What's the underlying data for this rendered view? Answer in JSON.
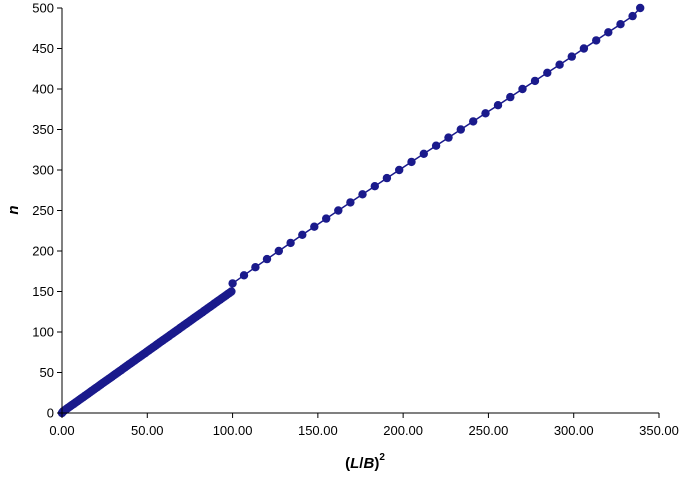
{
  "chart_data": {
    "type": "scatter",
    "xlabel": {
      "open": "(",
      "var1": "L",
      "slash": "/",
      "var2": "B",
      "close": ")",
      "exponent": "2"
    },
    "ylabel": "n",
    "xlim": [
      0,
      350
    ],
    "ylim": [
      0,
      500
    ],
    "x_ticks": [
      "0.00",
      "50.00",
      "100.00",
      "150.00",
      "200.00",
      "250.00",
      "300.00",
      "350.00"
    ],
    "y_ticks": [
      "0",
      "50",
      "100",
      "150",
      "200",
      "250",
      "300",
      "350",
      "400",
      "450",
      "500"
    ],
    "grid": false,
    "legend": "none",
    "marker_color": "#1a1a8c",
    "line_color": "#1a1a8c",
    "series": [
      {
        "x": [
          0.0,
          0.3,
          0.7,
          1.3,
          2.0,
          2.7,
          3.3,
          4.0,
          4.7,
          5.3,
          6.0,
          6.7,
          7.3,
          8.0,
          8.7,
          9.3,
          10.0,
          10.7,
          11.3,
          12.0,
          12.7,
          13.3,
          14.0,
          14.7,
          15.3,
          16.0,
          16.7,
          17.3,
          18.0,
          18.7,
          19.3,
          20.0,
          20.7,
          21.3,
          22.0,
          22.7,
          23.3,
          24.0,
          24.7,
          25.3,
          26.0,
          26.7,
          27.3,
          28.0,
          28.7,
          29.3,
          30.0,
          30.7,
          31.3,
          32.0,
          32.7,
          33.3,
          34.0,
          34.7,
          35.3,
          36.0,
          36.7,
          37.3,
          38.0,
          38.7,
          39.3,
          40.0,
          40.7,
          41.3,
          42.0,
          42.7,
          43.3,
          44.0,
          44.7,
          45.3,
          46.0,
          46.7,
          47.3,
          48.0,
          48.7,
          49.3,
          50.0,
          50.7,
          51.3,
          52.0,
          52.7,
          53.3,
          54.0,
          54.7,
          55.3,
          56.0,
          56.7,
          57.3,
          58.0,
          58.7,
          59.3,
          60.0,
          60.7,
          61.3,
          62.0,
          62.7,
          63.3,
          64.0,
          64.7,
          65.3,
          66.0,
          66.7,
          67.3,
          68.0,
          68.7,
          69.3,
          70.0,
          70.7,
          71.3,
          72.0,
          72.7,
          73.3,
          74.0,
          74.7,
          75.3,
          76.0,
          76.7,
          77.3,
          78.0,
          78.7,
          79.3,
          80.0,
          80.7,
          81.3,
          82.0,
          82.7,
          83.3,
          84.0,
          84.7,
          85.3,
          86.0,
          86.7,
          87.3,
          88.0,
          88.7,
          89.3,
          90.0,
          90.7,
          91.3,
          92.0,
          92.7,
          93.3,
          94.0,
          94.7,
          95.3,
          96.0,
          96.7,
          97.3,
          98.0,
          98.7,
          99.3,
          100.0,
          106.7,
          113.4,
          120.2,
          127.1,
          134.0,
          140.9,
          147.9,
          154.9,
          162.0,
          169.1,
          176.2,
          183.4,
          190.5,
          197.7,
          204.9,
          212.1,
          219.3,
          226.6,
          233.8,
          241.1,
          248.3,
          255.6,
          262.8,
          270.0,
          277.3,
          284.5,
          291.7,
          298.9,
          306.0,
          313.2,
          320.3,
          327.4,
          334.5,
          339.0
        ],
        "y": [
          0,
          1,
          2,
          3,
          4,
          5,
          6,
          7,
          8,
          9,
          10,
          11,
          12,
          13,
          14,
          15,
          16,
          17,
          18,
          19,
          20,
          21,
          22,
          23,
          24,
          25,
          26,
          27,
          28,
          29,
          30,
          31,
          32,
          33,
          34,
          35,
          36,
          37,
          38,
          39,
          40,
          41,
          42,
          43,
          44,
          45,
          46,
          47,
          48,
          49,
          50,
          51,
          52,
          53,
          54,
          55,
          56,
          57,
          58,
          59,
          60,
          61,
          62,
          63,
          64,
          65,
          66,
          67,
          68,
          69,
          70,
          71,
          72,
          73,
          74,
          75,
          76,
          77,
          78,
          79,
          80,
          81,
          82,
          83,
          84,
          85,
          86,
          87,
          88,
          89,
          90,
          91,
          92,
          93,
          94,
          95,
          96,
          97,
          98,
          99,
          100,
          101,
          102,
          103,
          104,
          105,
          106,
          107,
          108,
          109,
          110,
          111,
          112,
          113,
          114,
          115,
          116,
          117,
          118,
          119,
          120,
          121,
          122,
          123,
          124,
          125,
          126,
          127,
          128,
          129,
          130,
          131,
          132,
          133,
          134,
          135,
          136,
          137,
          138,
          139,
          140,
          141,
          142,
          143,
          144,
          145,
          146,
          147,
          148,
          149,
          150,
          160,
          170,
          180,
          190,
          200,
          210,
          220,
          230,
          240,
          250,
          260,
          270,
          280,
          290,
          300,
          310,
          320,
          330,
          340,
          350,
          360,
          370,
          380,
          390,
          400,
          410,
          420,
          430,
          440,
          450,
          460,
          470,
          480,
          490,
          500
        ]
      }
    ]
  }
}
